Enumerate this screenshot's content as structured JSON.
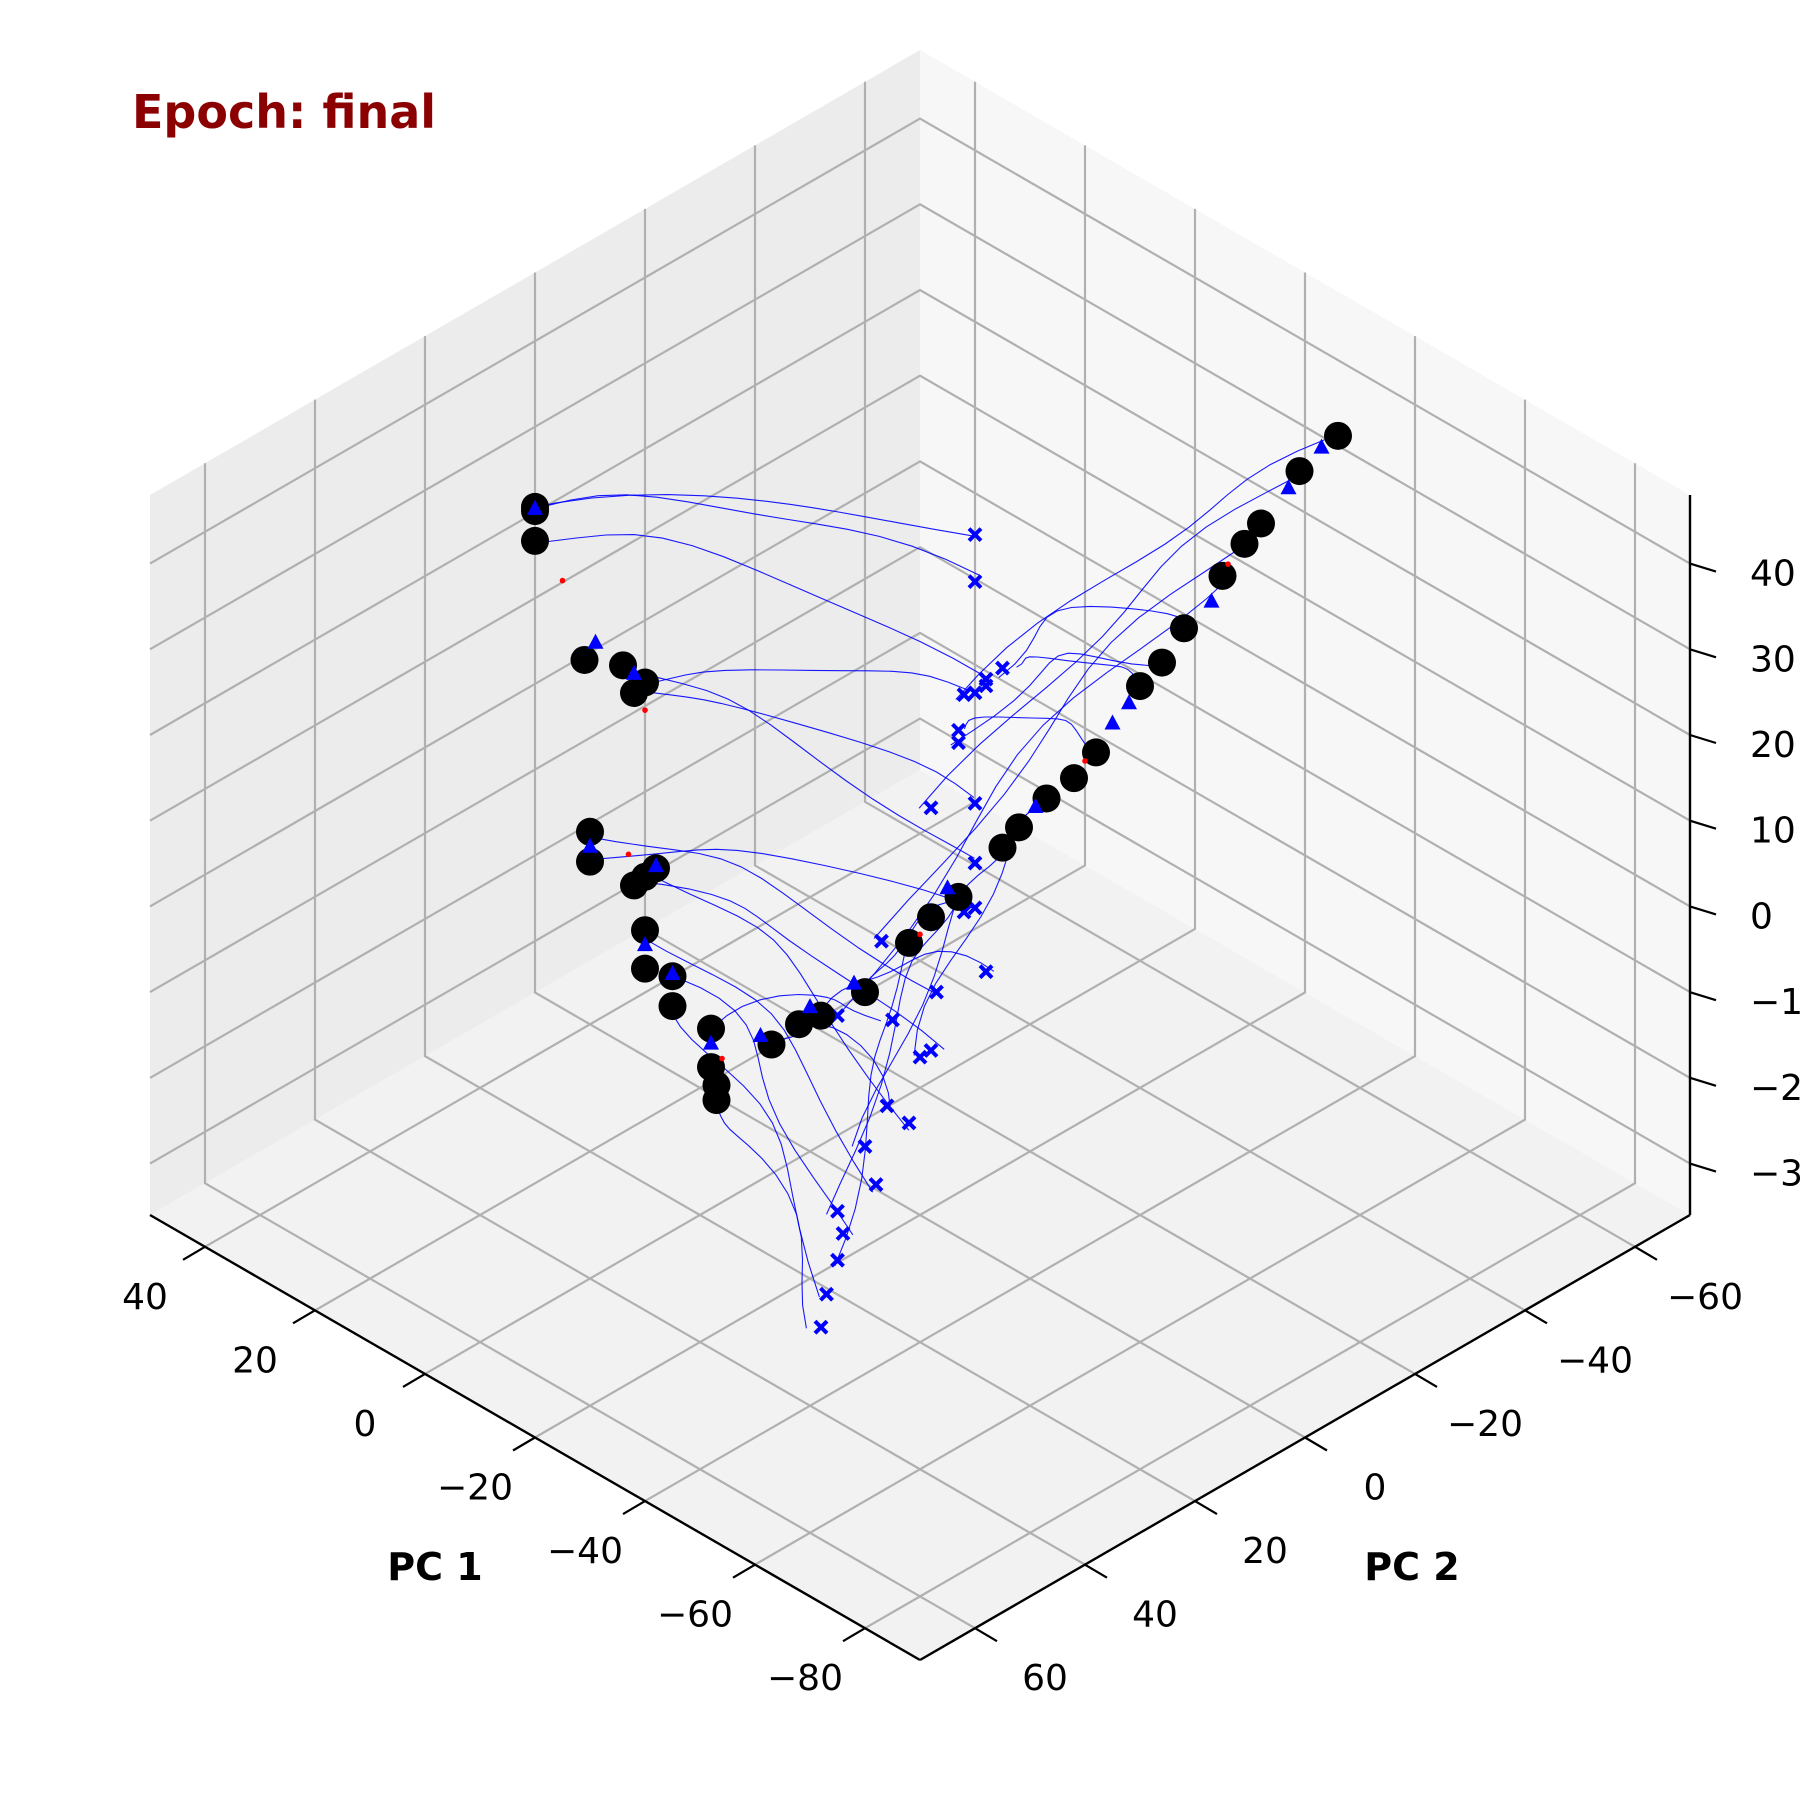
{
  "chart_data": {
    "type": "scatter",
    "title": "Epoch: final",
    "title_color": "#8b0000",
    "xlabel": "PC 1",
    "ylabel": "PC 2",
    "zlabel": "",
    "projection": "3d",
    "grid": true,
    "x_ticks": [
      40,
      20,
      0,
      -20,
      -40,
      -60,
      -80
    ],
    "y_ticks": [
      -60,
      -40,
      -20,
      0,
      20,
      40,
      60
    ],
    "z_ticks": [
      40,
      30,
      20,
      10,
      0,
      -10,
      -20,
      -30
    ],
    "tick_labels": {
      "x": [
        "40",
        "20",
        "0",
        "−20",
        "−40",
        "−60",
        "−80"
      ],
      "y": [
        "−60",
        "−40",
        "−20",
        "0",
        "20",
        "40",
        "60"
      ],
      "z": [
        "40",
        "30",
        "20",
        "10",
        "0",
        "−10",
        "−20",
        "−30"
      ]
    },
    "xlim": [
      50,
      -90
    ],
    "ylim": [
      -70,
      70
    ],
    "zlim": [
      -36,
      48
    ],
    "colors": {
      "trajectory": "#0000ff",
      "start_marker": "#0000ff",
      "end_marker": "#000000",
      "mid_marker": "#0000ff",
      "red_marker": "#ff0000"
    },
    "series": [
      {
        "marker": "x",
        "points": [
          [
            12,
            -40,
            -2
          ],
          [
            8,
            -30,
            -10
          ],
          [
            5,
            -18,
            -20
          ],
          [
            0,
            -5,
            -22
          ],
          [
            3,
            -35,
            5
          ],
          [
            10,
            -45,
            0
          ],
          [
            15,
            -42,
            -8
          ],
          [
            -10,
            -10,
            -25
          ],
          [
            -15,
            5,
            -28
          ],
          [
            -20,
            15,
            -30
          ],
          [
            -25,
            20,
            -32
          ],
          [
            -5,
            -25,
            -15
          ],
          [
            -12,
            -20,
            -18
          ],
          [
            18,
            -48,
            6
          ],
          [
            6,
            -38,
            2
          ],
          [
            -2,
            -28,
            -12
          ],
          [
            -8,
            -15,
            -20
          ],
          [
            -18,
            0,
            -26
          ],
          [
            -22,
            10,
            -28
          ],
          [
            -28,
            25,
            -33
          ],
          [
            14,
            -44,
            -4
          ],
          [
            2,
            -32,
            -8
          ],
          [
            -6,
            -22,
            -14
          ],
          [
            -14,
            -8,
            -22
          ],
          [
            -24,
            18,
            -30
          ],
          [
            20,
            -50,
            10
          ],
          [
            -3,
            -12,
            -24
          ],
          [
            -30,
            28,
            -35
          ],
          [
            9,
            -36,
            -5
          ],
          [
            -16,
            2,
            -24
          ]
        ]
      },
      {
        "marker": "o",
        "points": [
          [
            30,
            20,
            35
          ],
          [
            28,
            22,
            33
          ],
          [
            32,
            18,
            34
          ],
          [
            20,
            10,
            15
          ],
          [
            22,
            12,
            17
          ],
          [
            18,
            14,
            16
          ],
          [
            15,
            25,
            5
          ],
          [
            13,
            27,
            3
          ],
          [
            10,
            18,
            0
          ],
          [
            12,
            20,
            -2
          ],
          [
            8,
            22,
            -5
          ],
          [
            5,
            20,
            -10
          ],
          [
            3,
            22,
            -12
          ],
          [
            0,
            18,
            -15
          ],
          [
            -2,
            20,
            -18
          ],
          [
            -5,
            22,
            -20
          ],
          [
            -8,
            15,
            -15
          ],
          [
            -12,
            10,
            -12
          ],
          [
            -15,
            5,
            -10
          ],
          [
            -18,
            0,
            -5
          ],
          [
            -22,
            -5,
            0
          ],
          [
            -25,
            -10,
            5
          ],
          [
            -28,
            -15,
            10
          ],
          [
            -32,
            -20,
            15
          ],
          [
            -35,
            -25,
            22
          ],
          [
            -38,
            -30,
            28
          ],
          [
            -40,
            -35,
            33
          ],
          [
            -42,
            -40,
            38
          ],
          [
            -44,
            -45,
            43
          ],
          [
            -46,
            -50,
            46
          ],
          [
            -20,
            -2,
            -2
          ],
          [
            -26,
            -12,
            7
          ],
          [
            -30,
            -18,
            12
          ],
          [
            -36,
            -28,
            24
          ],
          [
            -41,
            -38,
            36
          ],
          [
            6,
            24,
            -8
          ],
          [
            25,
            16,
            18
          ],
          [
            11,
            19,
            -1
          ],
          [
            -4,
            21,
            -19
          ],
          [
            -10,
            12,
            -13
          ]
        ]
      },
      {
        "marker": "^",
        "points": [
          [
            29,
            21,
            36
          ],
          [
            21,
            11,
            16
          ],
          [
            14,
            26,
            4
          ],
          [
            9,
            19,
            1
          ],
          [
            4,
            21,
            -9
          ],
          [
            -1,
            19,
            -16
          ],
          [
            -7,
            16,
            -14
          ],
          [
            -14,
            6,
            -9
          ],
          [
            -21,
            -4,
            1
          ],
          [
            -27,
            -14,
            9
          ],
          [
            -34,
            -24,
            20
          ],
          [
            -39,
            -34,
            30
          ],
          [
            -43,
            -44,
            41
          ],
          [
            -45,
            -48,
            45
          ],
          [
            24,
            15,
            20
          ],
          [
            7,
            23,
            -6
          ],
          [
            -11,
            11,
            -11
          ],
          [
            -33,
            -22,
            18
          ]
        ]
      },
      {
        "marker": "dot",
        "points": [
          [
            26,
            19,
            28
          ],
          [
            17,
            13,
            14
          ],
          [
            12,
            21,
            2
          ],
          [
            -3,
            19,
            -17
          ],
          [
            -19,
            -1,
            -4
          ],
          [
            -31,
            -19,
            14
          ],
          [
            -40,
            -36,
            34
          ]
        ]
      }
    ],
    "trajectories": [
      {
        "from": [
          12,
          -40,
          -2
        ],
        "to": [
          -46,
          -50,
          46
        ]
      },
      {
        "from": [
          8,
          -30,
          -10
        ],
        "to": [
          -44,
          -45,
          43
        ]
      },
      {
        "from": [
          5,
          -18,
          -20
        ],
        "to": [
          -42,
          -40,
          38
        ]
      },
      {
        "from": [
          0,
          -5,
          -22
        ],
        "to": [
          -40,
          -35,
          33
        ]
      },
      {
        "from": [
          3,
          -35,
          5
        ],
        "to": [
          -38,
          -30,
          28
        ]
      },
      {
        "from": [
          10,
          -45,
          0
        ],
        "to": [
          -35,
          -25,
          22
        ]
      },
      {
        "from": [
          15,
          -42,
          -8
        ],
        "to": [
          -32,
          -20,
          15
        ]
      },
      {
        "from": [
          -10,
          -10,
          -25
        ],
        "to": [
          -28,
          -15,
          10
        ]
      },
      {
        "from": [
          -15,
          5,
          -28
        ],
        "to": [
          -25,
          -10,
          5
        ]
      },
      {
        "from": [
          -20,
          15,
          -30
        ],
        "to": [
          -22,
          -5,
          0
        ]
      },
      {
        "from": [
          -25,
          20,
          -32
        ],
        "to": [
          -18,
          0,
          -5
        ]
      },
      {
        "from": [
          -5,
          -25,
          -15
        ],
        "to": [
          -15,
          5,
          -10
        ]
      },
      {
        "from": [
          -12,
          -20,
          -18
        ],
        "to": [
          -12,
          10,
          -12
        ]
      },
      {
        "from": [
          18,
          -48,
          6
        ],
        "to": [
          30,
          20,
          35
        ]
      },
      {
        "from": [
          6,
          -38,
          2
        ],
        "to": [
          28,
          22,
          33
        ]
      },
      {
        "from": [
          -2,
          -28,
          -12
        ],
        "to": [
          22,
          12,
          17
        ]
      },
      {
        "from": [
          -8,
          -15,
          -20
        ],
        "to": [
          15,
          25,
          5
        ]
      },
      {
        "from": [
          -18,
          0,
          -26
        ],
        "to": [
          10,
          18,
          0
        ]
      },
      {
        "from": [
          -22,
          10,
          -28
        ],
        "to": [
          8,
          22,
          -5
        ]
      },
      {
        "from": [
          -28,
          25,
          -33
        ],
        "to": [
          3,
          22,
          -12
        ]
      },
      {
        "from": [
          14,
          -44,
          -4
        ],
        "to": [
          20,
          10,
          15
        ]
      },
      {
        "from": [
          2,
          -32,
          -8
        ],
        "to": [
          18,
          14,
          16
        ]
      },
      {
        "from": [
          -6,
          -22,
          -14
        ],
        "to": [
          13,
          27,
          3
        ]
      },
      {
        "from": [
          -14,
          -8,
          -22
        ],
        "to": [
          12,
          20,
          -2
        ]
      },
      {
        "from": [
          -24,
          18,
          -30
        ],
        "to": [
          5,
          20,
          -10
        ]
      },
      {
        "from": [
          20,
          -50,
          10
        ],
        "to": [
          32,
          18,
          34
        ]
      },
      {
        "from": [
          -3,
          -12,
          -24
        ],
        "to": [
          0,
          18,
          -15
        ]
      },
      {
        "from": [
          -30,
          28,
          -35
        ],
        "to": [
          -5,
          22,
          -20
        ]
      },
      {
        "from": [
          9,
          -36,
          -5
        ],
        "to": [
          -36,
          -28,
          24
        ]
      },
      {
        "from": [
          -16,
          2,
          -24
        ],
        "to": [
          -8,
          15,
          -15
        ]
      }
    ]
  }
}
